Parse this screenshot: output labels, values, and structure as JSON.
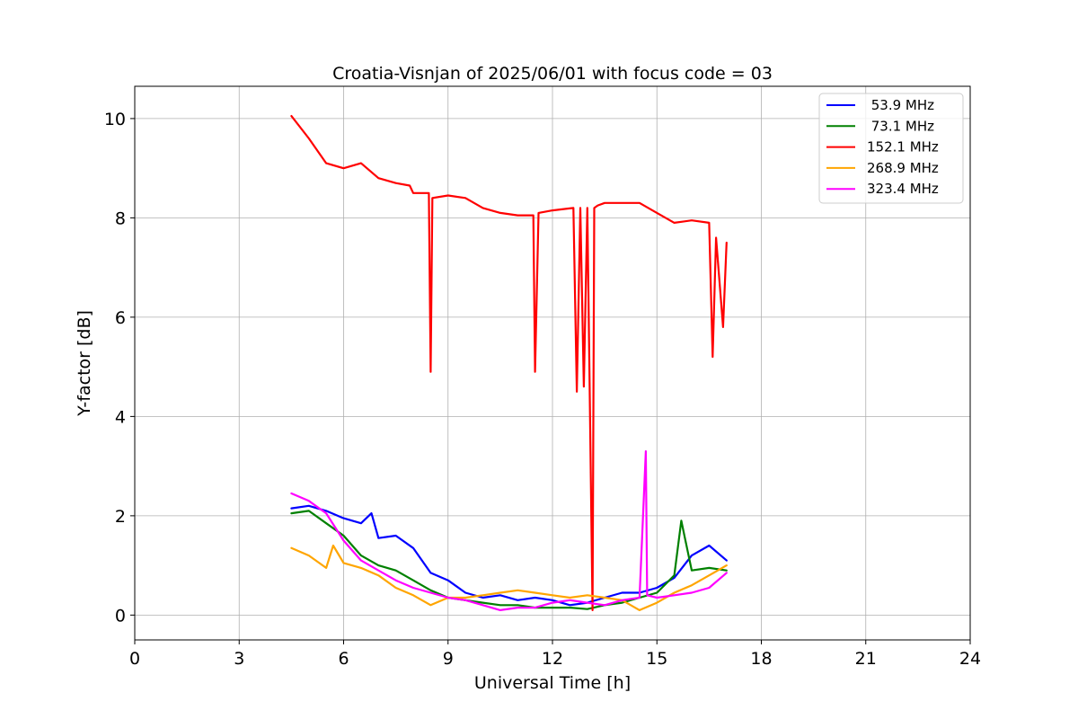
{
  "chart_data": {
    "type": "line",
    "title": "Croatia-Visnjan of 2025/06/01 with focus code = 03",
    "xlabel": "Universal Time [h]",
    "ylabel": "Y-factor [dB]",
    "xlim": [
      0,
      24
    ],
    "ylim": [
      -0.5,
      10.65
    ],
    "xticks": [
      0,
      3,
      6,
      9,
      12,
      15,
      18,
      21,
      24
    ],
    "xtick_labels": [
      "0",
      "3",
      "6",
      "9",
      "12",
      "15",
      "18",
      "21",
      "24"
    ],
    "yticks": [
      0,
      2,
      4,
      6,
      8,
      10
    ],
    "ytick_labels": [
      "0",
      "2",
      "4",
      "6",
      "8",
      "10"
    ],
    "grid": true,
    "legend_position": "top-right",
    "series": [
      {
        "name": " 53.9 MHz",
        "color": "#0000ff",
        "x": [
          4.5,
          5.0,
          5.5,
          6.0,
          6.5,
          6.8,
          7.0,
          7.5,
          8.0,
          8.5,
          9.0,
          9.5,
          10.0,
          10.5,
          11.0,
          11.5,
          12.0,
          12.5,
          13.0,
          13.5,
          14.0,
          14.5,
          15.0,
          15.5,
          16.0,
          16.5,
          17.0
        ],
        "y": [
          2.15,
          2.2,
          2.1,
          1.95,
          1.85,
          2.05,
          1.55,
          1.6,
          1.35,
          0.85,
          0.7,
          0.45,
          0.35,
          0.4,
          0.3,
          0.35,
          0.3,
          0.2,
          0.25,
          0.35,
          0.45,
          0.45,
          0.55,
          0.75,
          1.2,
          1.4,
          1.1
        ]
      },
      {
        "name": " 73.1 MHz",
        "color": "#008000",
        "x": [
          4.5,
          5.0,
          5.5,
          6.0,
          6.5,
          7.0,
          7.5,
          8.0,
          8.5,
          9.0,
          9.5,
          10.0,
          10.5,
          11.0,
          11.5,
          12.0,
          12.5,
          13.0,
          13.5,
          14.0,
          14.5,
          15.0,
          15.5,
          15.7,
          16.0,
          16.5,
          17.0
        ],
        "y": [
          2.05,
          2.1,
          1.85,
          1.6,
          1.2,
          1.0,
          0.9,
          0.7,
          0.5,
          0.35,
          0.3,
          0.25,
          0.2,
          0.2,
          0.15,
          0.15,
          0.15,
          0.12,
          0.2,
          0.25,
          0.35,
          0.45,
          0.8,
          1.9,
          0.9,
          0.95,
          0.9
        ]
      },
      {
        "name": "152.1 MHz",
        "color": "#ff0000",
        "x": [
          4.5,
          5.0,
          5.5,
          6.0,
          6.5,
          7.0,
          7.5,
          7.9,
          8.0,
          8.45,
          8.5,
          8.55,
          9.0,
          9.5,
          10.0,
          10.5,
          11.0,
          11.45,
          11.5,
          11.6,
          12.0,
          12.6,
          12.7,
          12.8,
          12.9,
          13.0,
          13.15,
          13.2,
          13.3,
          13.5,
          14.0,
          14.5,
          15.0,
          15.5,
          16.0,
          16.5,
          16.6,
          16.7,
          16.9,
          17.0
        ],
        "y": [
          10.05,
          9.6,
          9.1,
          9.0,
          9.1,
          8.8,
          8.7,
          8.65,
          8.5,
          8.5,
          4.9,
          8.4,
          8.45,
          8.4,
          8.2,
          8.1,
          8.05,
          8.05,
          4.9,
          8.1,
          8.15,
          8.2,
          4.5,
          8.2,
          4.6,
          8.2,
          0.1,
          8.2,
          8.25,
          8.3,
          8.3,
          8.3,
          8.1,
          7.9,
          7.95,
          7.9,
          5.2,
          7.6,
          5.8,
          7.5
        ]
      },
      {
        "name": "268.9 MHz",
        "color": "#ffa500",
        "x": [
          4.5,
          5.0,
          5.5,
          5.7,
          6.0,
          6.5,
          7.0,
          7.5,
          8.0,
          8.5,
          9.0,
          9.5,
          10.0,
          10.5,
          11.0,
          11.5,
          12.0,
          12.5,
          13.0,
          13.5,
          14.0,
          14.5,
          15.0,
          15.5,
          16.0,
          16.5,
          17.0
        ],
        "y": [
          1.35,
          1.2,
          0.95,
          1.4,
          1.05,
          0.95,
          0.8,
          0.55,
          0.4,
          0.2,
          0.35,
          0.35,
          0.4,
          0.45,
          0.5,
          0.45,
          0.4,
          0.35,
          0.4,
          0.35,
          0.3,
          0.1,
          0.25,
          0.45,
          0.6,
          0.8,
          1.0
        ]
      },
      {
        "name": "323.4 MHz",
        "color": "#ff00ff",
        "x": [
          4.5,
          5.0,
          5.5,
          6.0,
          6.5,
          7.0,
          7.5,
          8.0,
          8.5,
          9.0,
          9.5,
          10.0,
          10.5,
          11.0,
          11.5,
          12.0,
          12.5,
          13.0,
          13.5,
          14.0,
          14.5,
          14.68,
          14.72,
          15.0,
          15.5,
          16.0,
          16.5,
          17.0
        ],
        "y": [
          2.45,
          2.3,
          2.05,
          1.5,
          1.1,
          0.9,
          0.7,
          0.55,
          0.45,
          0.35,
          0.3,
          0.2,
          0.1,
          0.15,
          0.15,
          0.25,
          0.3,
          0.25,
          0.2,
          0.3,
          0.35,
          3.3,
          0.4,
          0.35,
          0.4,
          0.45,
          0.55,
          0.85
        ]
      }
    ]
  }
}
